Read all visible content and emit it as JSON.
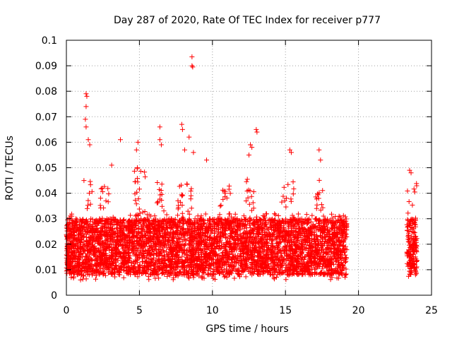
{
  "chart_data": {
    "type": "scatter",
    "title": "Day 287 of 2020, Rate Of TEC Index for receiver p777",
    "xlabel": "GPS time / hours",
    "ylabel": "ROTI / TECUs",
    "xlim": [
      0,
      25
    ],
    "ylim": [
      0,
      0.1
    ],
    "x_ticks": [
      "0",
      "5",
      "10",
      "15",
      "20",
      "25"
    ],
    "y_ticks": [
      "0",
      "0.01",
      "0.02",
      "0.03",
      "0.04",
      "0.05",
      "0.06",
      "0.07",
      "0.08",
      "0.09",
      "0.1"
    ],
    "grid": true,
    "marker": "+",
    "series_color": "#ff0000",
    "data_coverage_hours": [
      [
        0,
        19.2
      ],
      [
        23.3,
        24.0
      ]
    ],
    "outliers": [
      {
        "x": 1.35,
        "y": 0.079
      },
      {
        "x": 1.4,
        "y": 0.078
      },
      {
        "x": 1.35,
        "y": 0.074
      },
      {
        "x": 1.3,
        "y": 0.069
      },
      {
        "x": 1.35,
        "y": 0.066
      },
      {
        "x": 1.5,
        "y": 0.061
      },
      {
        "x": 1.6,
        "y": 0.059
      },
      {
        "x": 3.7,
        "y": 0.061
      },
      {
        "x": 3.1,
        "y": 0.051
      },
      {
        "x": 4.8,
        "y": 0.057
      },
      {
        "x": 4.9,
        "y": 0.06
      },
      {
        "x": 6.4,
        "y": 0.066
      },
      {
        "x": 6.4,
        "y": 0.061
      },
      {
        "x": 6.5,
        "y": 0.059
      },
      {
        "x": 7.9,
        "y": 0.067
      },
      {
        "x": 7.95,
        "y": 0.065
      },
      {
        "x": 8.1,
        "y": 0.057
      },
      {
        "x": 8.4,
        "y": 0.062
      },
      {
        "x": 8.6,
        "y": 0.0935
      },
      {
        "x": 8.6,
        "y": 0.09
      },
      {
        "x": 8.65,
        "y": 0.0895
      },
      {
        "x": 8.7,
        "y": 0.056
      },
      {
        "x": 9.6,
        "y": 0.053
      },
      {
        "x": 12.6,
        "y": 0.059
      },
      {
        "x": 12.7,
        "y": 0.058
      },
      {
        "x": 12.5,
        "y": 0.055
      },
      {
        "x": 13.0,
        "y": 0.065
      },
      {
        "x": 13.05,
        "y": 0.064
      },
      {
        "x": 15.3,
        "y": 0.057
      },
      {
        "x": 15.4,
        "y": 0.056
      },
      {
        "x": 17.3,
        "y": 0.057
      },
      {
        "x": 17.4,
        "y": 0.053
      },
      {
        "x": 23.5,
        "y": 0.049
      },
      {
        "x": 23.6,
        "y": 0.048
      }
    ]
  }
}
